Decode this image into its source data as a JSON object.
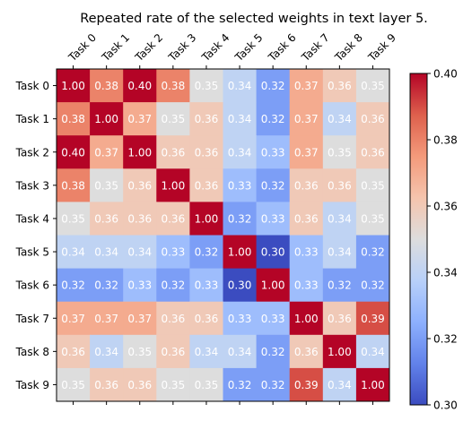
{
  "chart_data": {
    "type": "heatmap",
    "title": "Repeated rate of the selected weights in text layer 5.",
    "x_labels": [
      "Task 0",
      "Task 1",
      "Task 2",
      "Task 3",
      "Task 4",
      "Task 5",
      "Task 6",
      "Task 7",
      "Task 8",
      "Task 9"
    ],
    "y_labels": [
      "Task 0",
      "Task 1",
      "Task 2",
      "Task 3",
      "Task 4",
      "Task 5",
      "Task 6",
      "Task 7",
      "Task 8",
      "Task 9"
    ],
    "values": [
      [
        1.0,
        0.38,
        0.4,
        0.38,
        0.35,
        0.34,
        0.32,
        0.37,
        0.36,
        0.35
      ],
      [
        0.38,
        1.0,
        0.37,
        0.35,
        0.36,
        0.34,
        0.32,
        0.37,
        0.34,
        0.36
      ],
      [
        0.4,
        0.37,
        1.0,
        0.36,
        0.36,
        0.34,
        0.33,
        0.37,
        0.35,
        0.36
      ],
      [
        0.38,
        0.35,
        0.36,
        1.0,
        0.36,
        0.33,
        0.32,
        0.36,
        0.36,
        0.35
      ],
      [
        0.35,
        0.36,
        0.36,
        0.36,
        1.0,
        0.32,
        0.33,
        0.36,
        0.34,
        0.35
      ],
      [
        0.34,
        0.34,
        0.34,
        0.33,
        0.32,
        1.0,
        0.3,
        0.33,
        0.34,
        0.32
      ],
      [
        0.32,
        0.32,
        0.33,
        0.32,
        0.33,
        0.3,
        1.0,
        0.33,
        0.32,
        0.32
      ],
      [
        0.37,
        0.37,
        0.37,
        0.36,
        0.36,
        0.33,
        0.33,
        1.0,
        0.36,
        0.39
      ],
      [
        0.36,
        0.34,
        0.35,
        0.36,
        0.34,
        0.34,
        0.32,
        0.36,
        1.0,
        0.34
      ],
      [
        0.35,
        0.36,
        0.36,
        0.35,
        0.35,
        0.32,
        0.32,
        0.39,
        0.34,
        1.0
      ]
    ],
    "value_format": "2 decimals",
    "color_range": [
      0.3,
      0.4
    ],
    "colormap": "coolwarm",
    "colorbar_ticks": [
      0.3,
      0.32,
      0.34,
      0.36,
      0.38,
      0.4
    ],
    "colorbar_tick_labels": [
      "0.30",
      "0.32",
      "0.34",
      "0.36",
      "0.38",
      "0.40"
    ],
    "x_labels_position": "top",
    "grid": false
  }
}
